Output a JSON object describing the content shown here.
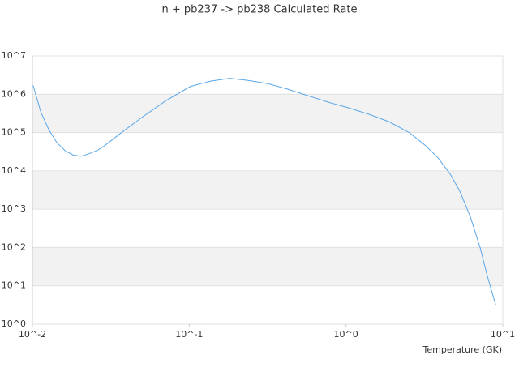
{
  "chart_data": {
    "type": "line",
    "title": "n + pb237 -> pb238 Calculated Rate",
    "x_label": "Temperature (GK)",
    "xscale": "log",
    "yscale": "log",
    "band_color": "#f2f2f2",
    "xlim": [
      0.01,
      10
    ],
    "xticks": [
      {
        "value": 0.01,
        "label": "10^-2"
      },
      {
        "value": 0.1,
        "label": "10^-1"
      },
      {
        "value": 1,
        "label": "10^0"
      },
      {
        "value": 10,
        "label": "10^1"
      }
    ],
    "ylim": [
      1,
      10000000
    ],
    "yticks": [
      {
        "value": 1,
        "label": "10^0"
      },
      {
        "value": 10,
        "label": "10^1"
      },
      {
        "value": 100,
        "label": "10^2"
      },
      {
        "value": 1000,
        "label": "10^3"
      },
      {
        "value": 10000,
        "label": "10^4"
      },
      {
        "value": 100000,
        "label": "10^5"
      },
      {
        "value": 1000000,
        "label": "10^6"
      },
      {
        "value": 10000000,
        "label": "10^7"
      }
    ],
    "x": [
      0.0101,
      0.0113,
      0.0127,
      0.0143,
      0.0161,
      0.0181,
      0.0204,
      0.023,
      0.0259,
      0.0292,
      0.037,
      0.05,
      0.0714,
      0.102,
      0.137,
      0.181,
      0.235,
      0.316,
      0.426,
      0.574,
      0.773,
      1.04,
      1.4,
      1.89,
      2.55,
      3.23,
      3.86,
      4.62,
      5.33,
      6.22,
      7.18,
      7.89,
      9.0
    ],
    "series": [
      {
        "color": "#5aa7e8",
        "values": [
          1700000,
          350000,
          120000,
          55000,
          34000,
          26000,
          24000,
          28000,
          34000,
          47000,
          100000,
          250000,
          690000,
          1600000,
          2200000,
          2600000,
          2300000,
          1900000,
          1350000,
          910000,
          620000,
          440000,
          300000,
          190000,
          98000,
          45000,
          22000,
          8200,
          2900,
          620,
          97,
          21,
          3.2
        ]
      }
    ]
  }
}
